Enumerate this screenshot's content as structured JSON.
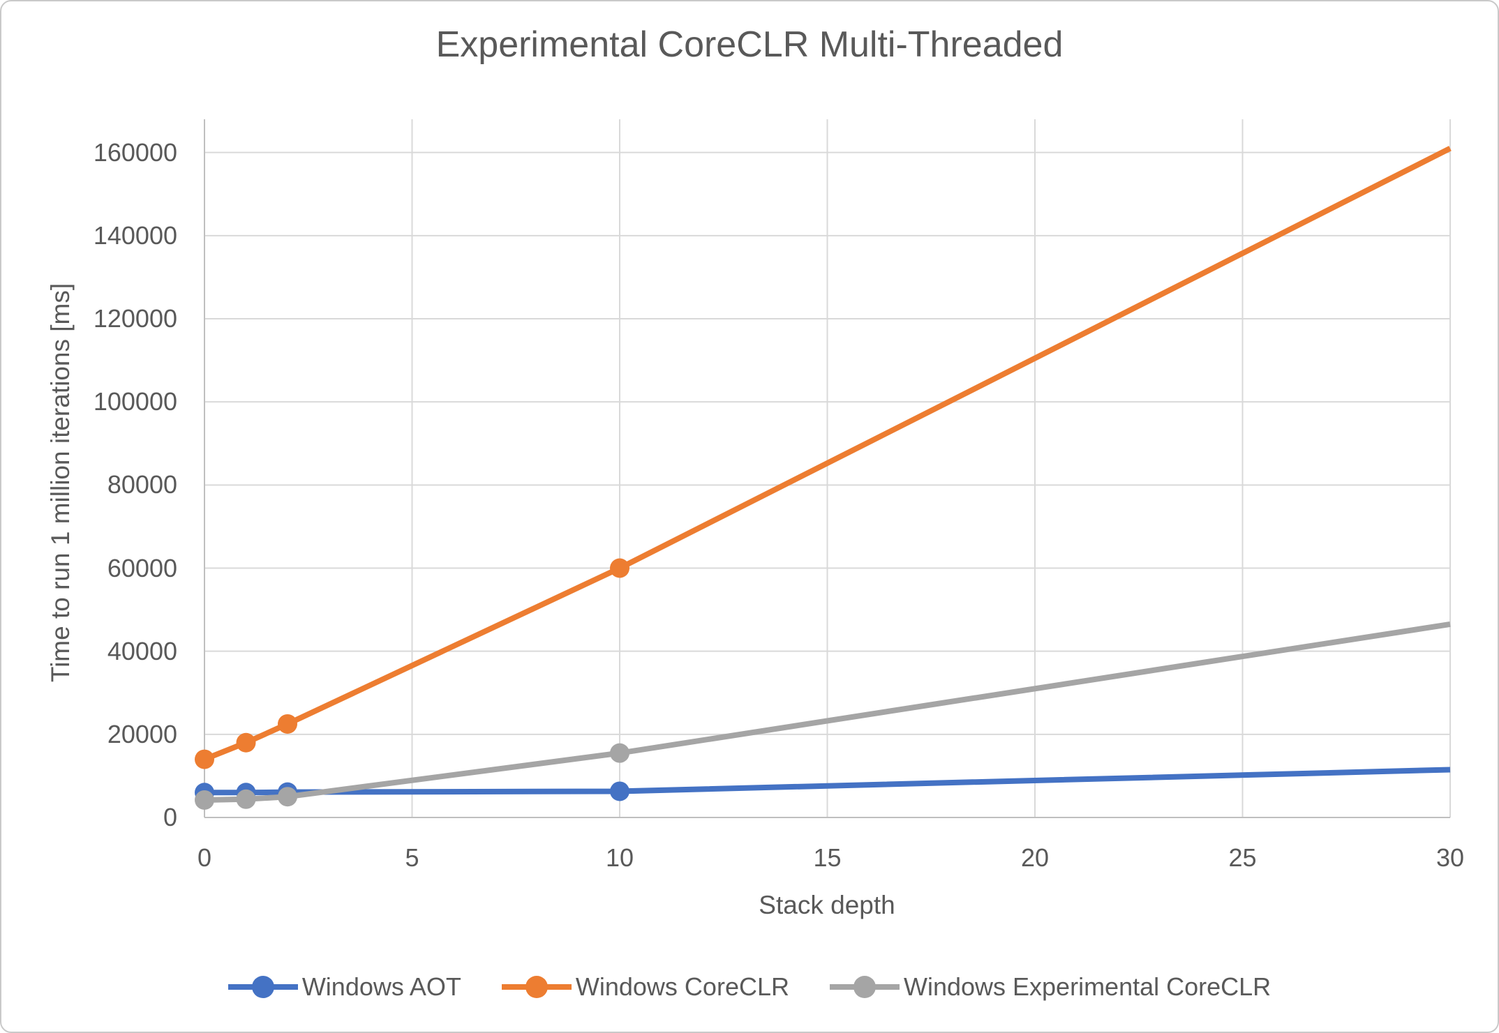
{
  "chart_data": {
    "type": "line",
    "title": "Experimental CoreCLR Multi-Threaded",
    "xlabel": "Stack depth",
    "ylabel": "Time to run 1 million iterations [ms]",
    "x": [
      0,
      1,
      2,
      10,
      30
    ],
    "xlim": [
      0,
      30
    ],
    "ylim": [
      0,
      168000
    ],
    "x_ticks": [
      0,
      5,
      10,
      15,
      20,
      25,
      30
    ],
    "y_ticks": [
      0,
      20000,
      40000,
      60000,
      80000,
      100000,
      120000,
      140000,
      160000
    ],
    "grid": true,
    "legend_position": "bottom",
    "marker_points": [
      0,
      1,
      2,
      10
    ],
    "series": [
      {
        "name": "Windows AOT",
        "color": "#4472C4",
        "values": [
          6000,
          6000,
          6100,
          6300,
          11500
        ]
      },
      {
        "name": "Windows CoreCLR",
        "color": "#ED7D31",
        "values": [
          14000,
          18000,
          22500,
          60000,
          161000
        ]
      },
      {
        "name": "Windows Experimental CoreCLR",
        "color": "#A5A5A5",
        "values": [
          4200,
          4400,
          5000,
          15500,
          46500
        ]
      }
    ],
    "colors": {
      "grid": "#D9D9D9",
      "axis": "#BFBFBF",
      "text": "#595959",
      "title": "#595959",
      "background": "#FFFFFF",
      "border": "#C9C9C9"
    }
  }
}
